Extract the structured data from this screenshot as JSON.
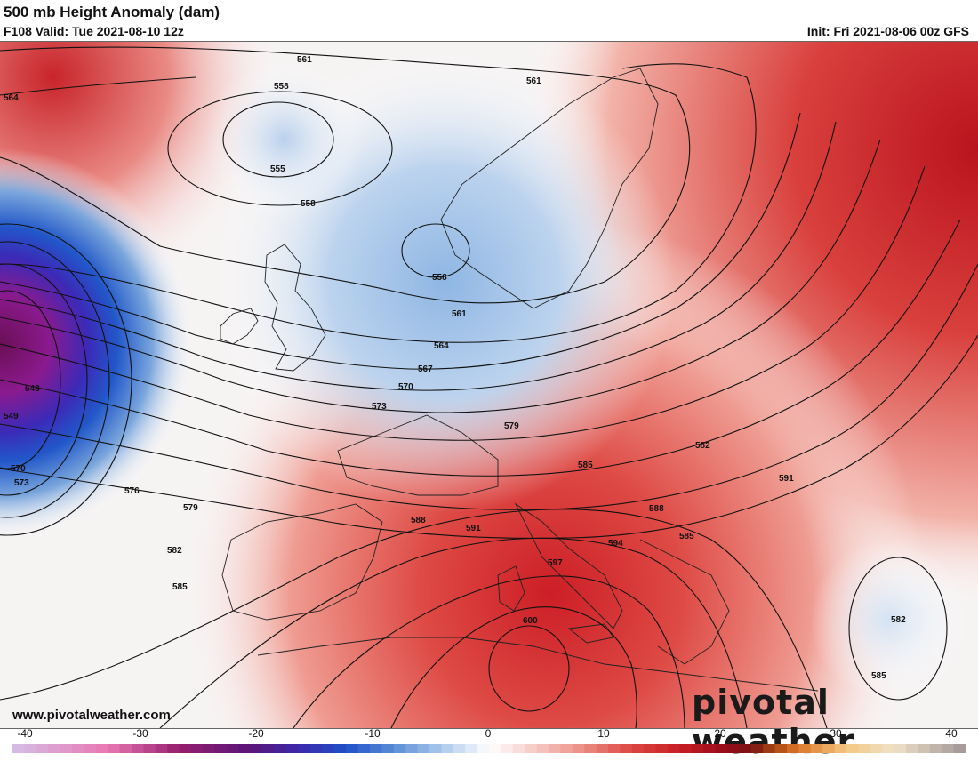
{
  "header": {
    "title": "500 mb Height Anomaly (dam)",
    "valid": "F108 Valid: Tue 2021-08-10 12z",
    "init": "Init: Fri 2021-08-06 00z GFS"
  },
  "contour_labels": [
    "561",
    "564",
    "558",
    "555",
    "558",
    "561",
    "558",
    "561",
    "564",
    "567",
    "570",
    "573",
    "579",
    "582",
    "585",
    "543",
    "549",
    "570",
    "573",
    "576",
    "579",
    "582",
    "585",
    "588",
    "591",
    "594",
    "597",
    "600",
    "585",
    "588",
    "591",
    "582",
    "585"
  ],
  "colorbar": {
    "ticks": [
      "-40",
      "-30",
      "-20",
      "-10",
      "0",
      "10",
      "20",
      "30",
      "40"
    ],
    "range": [
      -40,
      40
    ]
  },
  "watermark": {
    "url": "www.pivotalweather.com",
    "logo": "pivotal weather"
  },
  "colors": {
    "negative_strong": "#5b0a6e",
    "negative_mid": "#1f4fc0",
    "negative_light": "#c9dcf0",
    "neutral": "#ffffff",
    "positive_light": "#f4c9c4",
    "positive_mid": "#dd4a45",
    "positive_strong": "#a01220"
  }
}
